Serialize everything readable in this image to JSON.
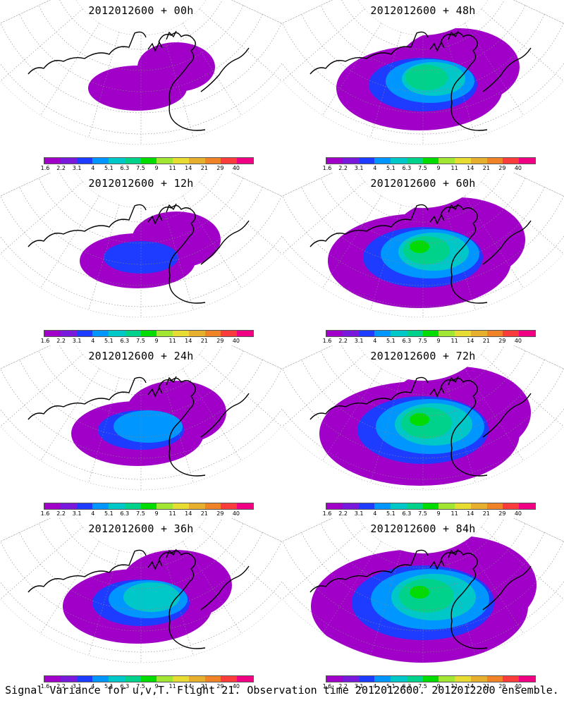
{
  "panels": [
    {
      "title": "2012012600 + 00h",
      "forecast_hour": 0
    },
    {
      "title": "2012012600 + 48h",
      "forecast_hour": 48
    },
    {
      "title": "2012012600 + 12h",
      "forecast_hour": 12
    },
    {
      "title": "2012012600 + 60h",
      "forecast_hour": 60
    },
    {
      "title": "2012012600 + 24h",
      "forecast_hour": 24
    },
    {
      "title": "2012012600 + 72h",
      "forecast_hour": 72
    },
    {
      "title": "2012012600 + 36h",
      "forecast_hour": 36
    },
    {
      "title": "2012012600 + 84h",
      "forecast_hour": 84
    }
  ],
  "colorbar": {
    "labels": [
      "1.6",
      "2.2",
      "3.1",
      "4",
      "5.1",
      "6.3",
      "7.5",
      "9",
      "11",
      "14",
      "21",
      "29",
      "40"
    ],
    "colors": [
      "#a000c8",
      "#7819dc",
      "#1e3cff",
      "#0096ff",
      "#00c8c8",
      "#00d28c",
      "#00dc00",
      "#a0e632",
      "#e6dc32",
      "#e6af2d",
      "#f08228",
      "#fa3c3c",
      "#f00082"
    ]
  },
  "caption": "Signal Variance for u,v,T. Flight 21. Observation time 2012012600. 2012012200 ensemble."
}
